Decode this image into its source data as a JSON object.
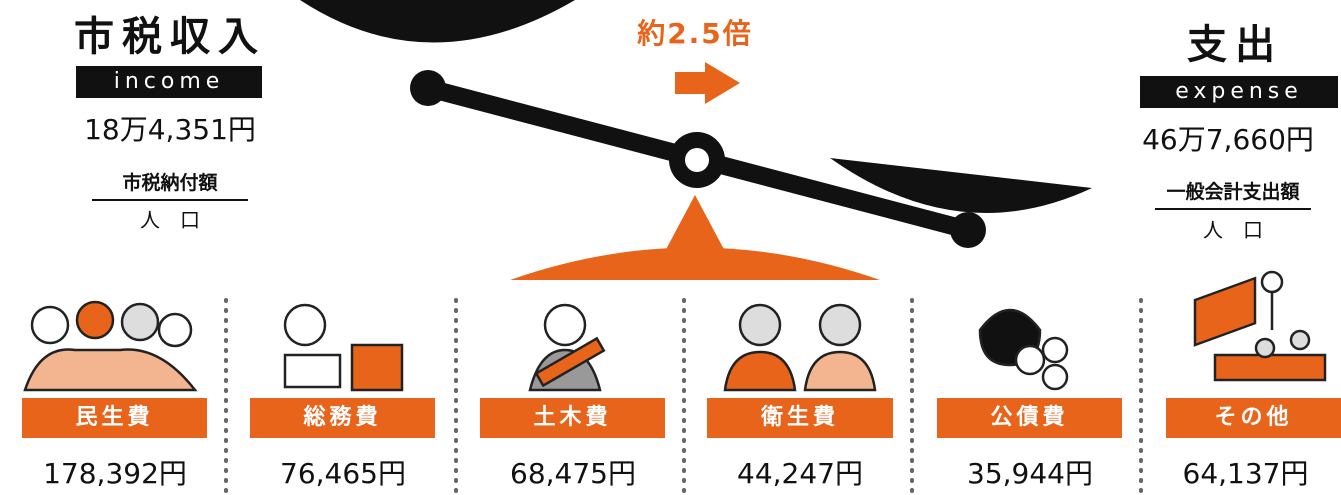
{
  "center": {
    "ratio": "約2.5倍"
  },
  "income": {
    "title": "市税収入",
    "tag": "income",
    "amount": "18万4,351円",
    "numerator": "市税納付額",
    "denominator": "人　口"
  },
  "expense": {
    "title": "支出",
    "tag": "expense",
    "amount": "46万7,660円",
    "numerator": "一般会計支出額",
    "denominator": "人　口"
  },
  "items": [
    {
      "label": "民生費",
      "amount": "178,392円"
    },
    {
      "label": "総務費",
      "amount": "76,465円"
    },
    {
      "label": "土木費",
      "amount": "68,475円"
    },
    {
      "label": "衛生費",
      "amount": "44,247円"
    },
    {
      "label": "公債費",
      "amount": "35,944円"
    },
    {
      "label": "その他",
      "amount": "64,137円"
    }
  ]
}
